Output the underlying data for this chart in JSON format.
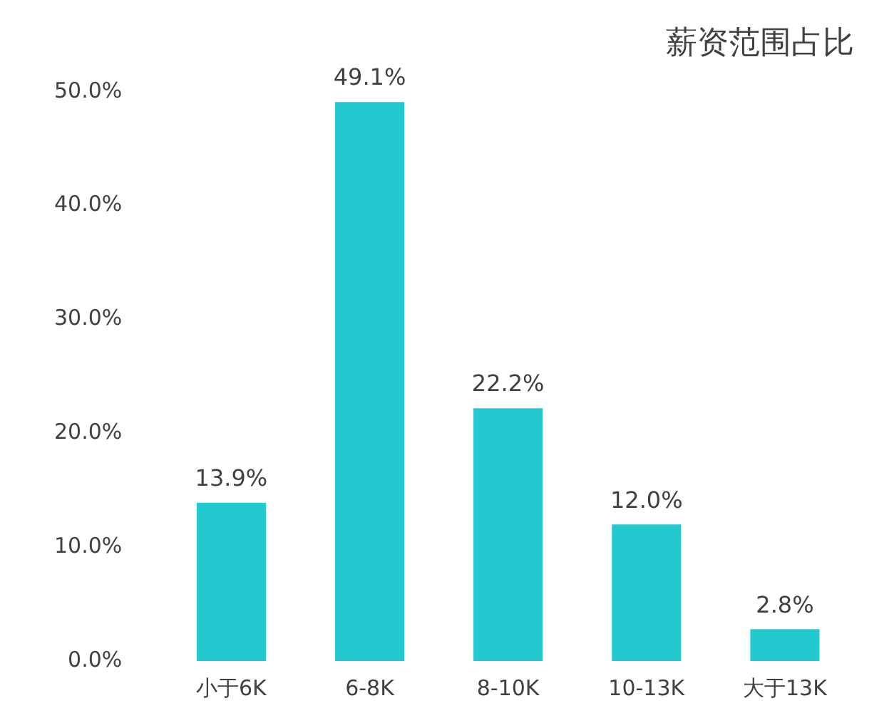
{
  "chart_data": {
    "type": "bar",
    "title": "薪资范围占比",
    "categories": [
      "小于6K",
      "6-8K",
      "8-10K",
      "10-13K",
      "大于13K"
    ],
    "values": [
      13.9,
      49.1,
      22.2,
      12.0,
      2.8
    ],
    "value_labels": [
      "13.9%",
      "49.1%",
      "22.2%",
      "12.0%",
      "2.8%"
    ],
    "color": "#22c9cf",
    "ylim": [
      0,
      50
    ],
    "yticks": [
      {
        "value": 0,
        "label": "0.0%"
      },
      {
        "value": 10,
        "label": "10.0%"
      },
      {
        "value": 20,
        "label": "20.0%"
      },
      {
        "value": 30,
        "label": "30.0%"
      },
      {
        "value": 40,
        "label": "40.0%"
      },
      {
        "value": 50,
        "label": "50.0%"
      }
    ],
    "grid": false
  }
}
